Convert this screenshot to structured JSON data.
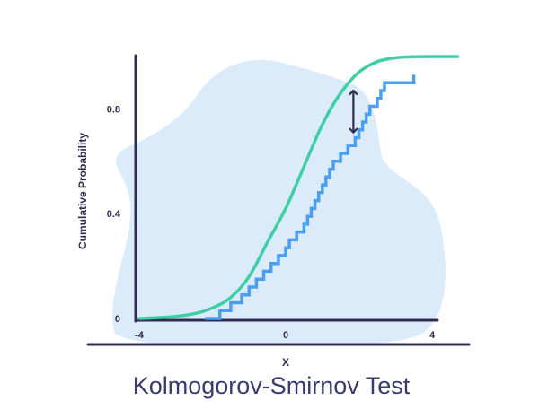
{
  "chart_data": {
    "type": "line",
    "title": "Kolmogorov-Smirnov Test",
    "xlabel": "X",
    "ylabel": "Cumulative Probability",
    "xlim": [
      -4,
      4.2
    ],
    "ylim": [
      0,
      1.0
    ],
    "x_ticks": [
      {
        "value": -4,
        "label": "-4"
      },
      {
        "value": 0,
        "label": "0"
      },
      {
        "value": 4,
        "label": "4"
      }
    ],
    "y_ticks": [
      {
        "value": 0,
        "label": "0"
      },
      {
        "value": 0.4,
        "label": "0.4"
      },
      {
        "value": 0.8,
        "label": "0.8"
      }
    ],
    "grid": false,
    "legend": "none",
    "series": [
      {
        "kind": "cdf-curve",
        "color": "#3ecfa6",
        "x": [
          -4.0,
          -3.5,
          -3.0,
          -2.5,
          -2.0,
          -1.5,
          -1.0,
          -0.5,
          0.0,
          0.5,
          1.0,
          1.5,
          2.0,
          2.5,
          3.0,
          3.5,
          4.0,
          4.7
        ],
        "y": [
          0.0,
          0.003,
          0.008,
          0.018,
          0.04,
          0.08,
          0.16,
          0.29,
          0.42,
          0.58,
          0.74,
          0.86,
          0.94,
          0.98,
          0.995,
          0.999,
          1.0,
          1.0
        ]
      },
      {
        "kind": "empirical-step",
        "color": "#4a9ff0",
        "x": [
          -2.2,
          -1.8,
          -1.5,
          -1.2,
          -1.0,
          -0.8,
          -0.6,
          -0.4,
          -0.2,
          0.0,
          0.1,
          0.3,
          0.5,
          0.6,
          0.7,
          0.8,
          0.9,
          1.0,
          1.1,
          1.2,
          1.3,
          1.5,
          1.7,
          1.9,
          2.0,
          2.1,
          2.2,
          2.3,
          2.5,
          2.6,
          2.7,
          3.5
        ],
        "y": [
          0.0,
          0.03,
          0.06,
          0.09,
          0.12,
          0.15,
          0.18,
          0.21,
          0.24,
          0.27,
          0.3,
          0.33,
          0.36,
          0.39,
          0.42,
          0.45,
          0.48,
          0.51,
          0.54,
          0.57,
          0.6,
          0.63,
          0.66,
          0.69,
          0.72,
          0.75,
          0.78,
          0.81,
          0.84,
          0.87,
          0.9,
          0.93
        ]
      }
    ],
    "annotations": [
      {
        "type": "double-arrow",
        "x": 1.85,
        "y_from": 0.88,
        "y_to": 0.7,
        "color": "#2f2d4f"
      }
    ]
  }
}
